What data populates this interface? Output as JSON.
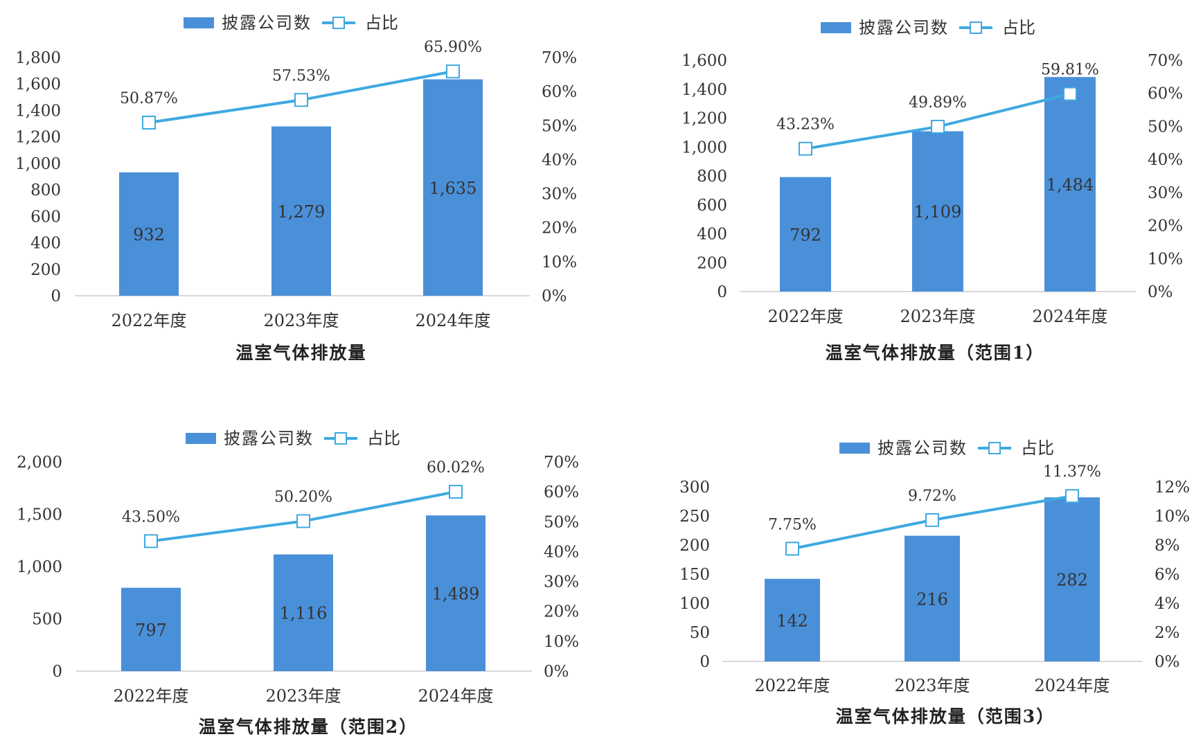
{
  "legend": {
    "bar_label": "披露公司数",
    "line_label": "占比"
  },
  "colors": {
    "bar": "#4a90d9",
    "line": "#3fa9e0",
    "axis": "#cccccc",
    "text": "#333333"
  },
  "chart_data": [
    {
      "type": "bar",
      "title": "温室气体排放量",
      "categories": [
        "2022年度",
        "2023年度",
        "2024年度"
      ],
      "series": [
        {
          "name": "披露公司数",
          "type": "bar",
          "values": [
            932,
            1279,
            1635
          ],
          "labels": [
            "932",
            "1,279",
            "1,635"
          ]
        },
        {
          "name": "占比",
          "type": "line",
          "axis": "right",
          "values": [
            50.87,
            57.53,
            65.9
          ],
          "labels": [
            "50.87%",
            "57.53%",
            "65.90%"
          ]
        }
      ],
      "ylim": [
        0,
        1800
      ],
      "yticks": [
        "0",
        "200",
        "400",
        "600",
        "800",
        "1,000",
        "1,200",
        "1,400",
        "1,600",
        "1,800"
      ],
      "y2lim": [
        0,
        70
      ],
      "y2ticks": [
        "0%",
        "10%",
        "20%",
        "30%",
        "40%",
        "50%",
        "60%",
        "70%"
      ],
      "legend_position": "top"
    },
    {
      "type": "bar",
      "title": "温室气体排放量（范围1）",
      "categories": [
        "2022年度",
        "2023年度",
        "2024年度"
      ],
      "series": [
        {
          "name": "披露公司数",
          "type": "bar",
          "values": [
            792,
            1109,
            1484
          ],
          "labels": [
            "792",
            "1,109",
            "1,484"
          ]
        },
        {
          "name": "占比",
          "type": "line",
          "axis": "right",
          "values": [
            43.23,
            49.89,
            59.81
          ],
          "labels": [
            "43.23%",
            "49.89%",
            "59.81%"
          ]
        }
      ],
      "ylim": [
        0,
        1600
      ],
      "yticks": [
        "0",
        "200",
        "400",
        "600",
        "800",
        "1,000",
        "1,200",
        "1,400",
        "1,600"
      ],
      "y2lim": [
        0,
        70
      ],
      "y2ticks": [
        "0%",
        "10%",
        "20%",
        "30%",
        "40%",
        "50%",
        "60%",
        "70%"
      ],
      "legend_position": "top"
    },
    {
      "type": "bar",
      "title": "温室气体排放量（范围2）",
      "categories": [
        "2022年度",
        "2023年度",
        "2024年度"
      ],
      "series": [
        {
          "name": "披露公司数",
          "type": "bar",
          "values": [
            797,
            1116,
            1489
          ],
          "labels": [
            "797",
            "1,116",
            "1,489"
          ]
        },
        {
          "name": "占比",
          "type": "line",
          "axis": "right",
          "values": [
            43.5,
            50.2,
            60.02
          ],
          "labels": [
            "43.50%",
            "50.20%",
            "60.02%"
          ]
        }
      ],
      "ylim": [
        0,
        2000
      ],
      "yticks": [
        "0",
        "500",
        "1,000",
        "1,500",
        "2,000"
      ],
      "y2lim": [
        0,
        70
      ],
      "y2ticks": [
        "0%",
        "10%",
        "20%",
        "30%",
        "40%",
        "50%",
        "60%",
        "70%"
      ],
      "legend_position": "top"
    },
    {
      "type": "bar",
      "title": "温室气体排放量（范围3）",
      "categories": [
        "2022年度",
        "2023年度",
        "2024年度"
      ],
      "series": [
        {
          "name": "披露公司数",
          "type": "bar",
          "values": [
            142,
            216,
            282
          ],
          "labels": [
            "142",
            "216",
            "282"
          ]
        },
        {
          "name": "占比",
          "type": "line",
          "axis": "right",
          "values": [
            7.75,
            9.72,
            11.37
          ],
          "labels": [
            "7.75%",
            "9.72%",
            "11.37%"
          ]
        }
      ],
      "ylim": [
        0,
        300
      ],
      "yticks": [
        "0",
        "50",
        "100",
        "150",
        "200",
        "250",
        "300"
      ],
      "y2lim": [
        0,
        12
      ],
      "y2ticks": [
        "0%",
        "2%",
        "4%",
        "6%",
        "8%",
        "10%",
        "12%"
      ],
      "legend_position": "top"
    }
  ]
}
